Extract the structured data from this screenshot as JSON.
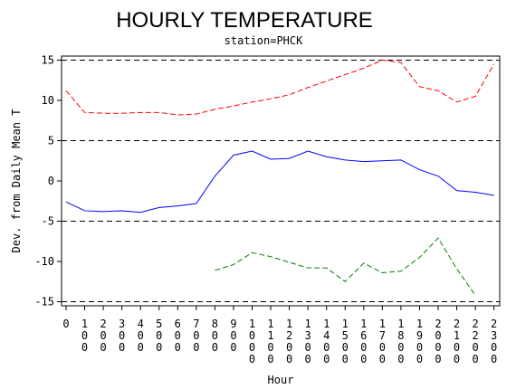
{
  "chart_data": {
    "type": "line",
    "title": "HOURLY TEMPERATURE",
    "subtitle": "station=PHCK",
    "xlabel": "Hour",
    "ylabel": "Dev. from Daily Mean T",
    "ylim": [
      -15.5,
      15.5
    ],
    "y_ticks": [
      -15,
      -10,
      -5,
      0,
      5,
      10,
      15
    ],
    "x_ticks": [
      "0",
      "100",
      "200",
      "300",
      "400",
      "500",
      "600",
      "700",
      "800",
      "900",
      "1000",
      "1100",
      "1200",
      "1300",
      "1400",
      "1500",
      "1600",
      "1700",
      "1800",
      "1900",
      "2000",
      "2100",
      "2200",
      "2300"
    ],
    "reference_lines": [
      -15,
      -5,
      5,
      15
    ],
    "series": [
      {
        "color": "#ff0000",
        "dash": "dashed",
        "values": [
          11.2,
          8.5,
          8.4,
          8.4,
          8.5,
          8.5,
          8.2,
          8.3,
          8.9,
          9.3,
          9.8,
          10.2,
          10.7,
          11.6,
          12.4,
          13.2,
          14.0,
          15.0,
          14.7,
          11.7,
          11.2,
          9.8,
          10.5,
          14.5
        ]
      },
      {
        "color": "#0000ff",
        "dash": "solid",
        "values": [
          -2.6,
          -3.7,
          -3.8,
          -3.7,
          -3.9,
          -3.3,
          -3.1,
          -2.8,
          0.6,
          3.2,
          3.7,
          2.7,
          2.8,
          3.7,
          3.0,
          2.6,
          2.4,
          2.5,
          2.6,
          1.4,
          0.6,
          -1.2,
          -1.4,
          -1.8
        ]
      },
      {
        "color": "#008000",
        "dash": "dashed",
        "values": [
          null,
          null,
          null,
          null,
          null,
          null,
          null,
          null,
          -11.1,
          -10.4,
          -8.9,
          -9.4,
          -10.1,
          -10.8,
          -10.8,
          -12.5,
          -10.2,
          -11.4,
          -11.2,
          -9.5,
          -7.1,
          -10.9,
          -14.2,
          null
        ]
      }
    ]
  }
}
